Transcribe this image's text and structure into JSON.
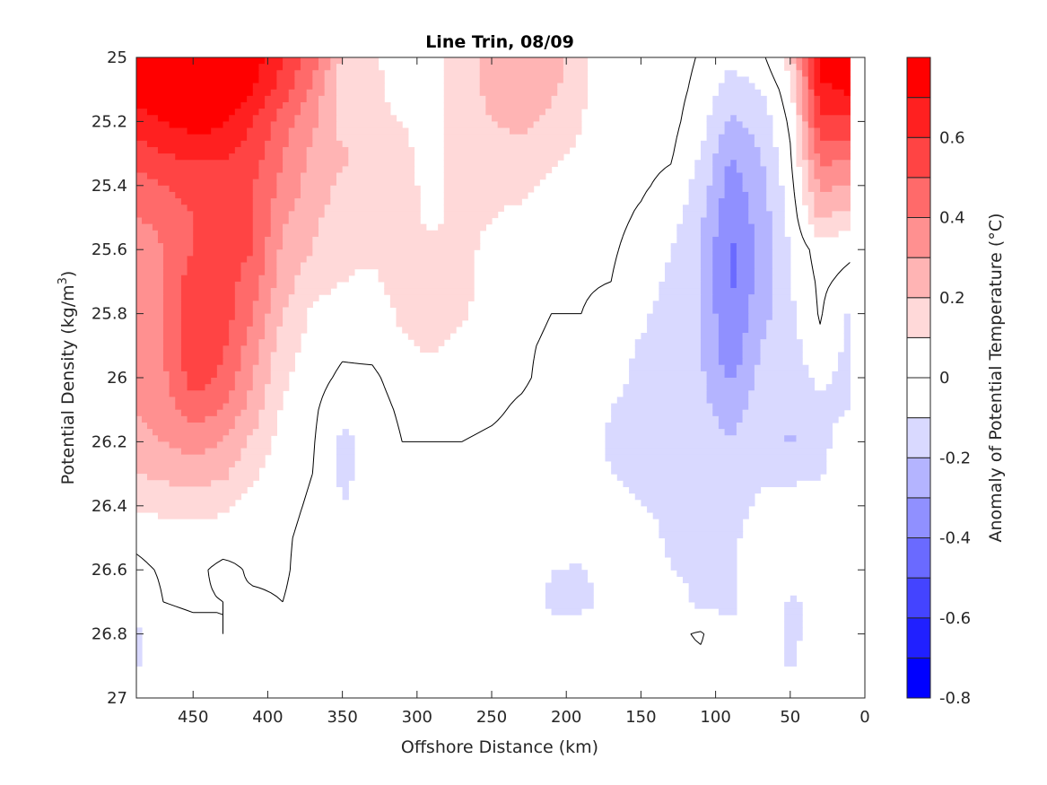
{
  "chart_data": {
    "type": "heatmap",
    "subtype": "filled-contour",
    "title": "Line Trin, 08/09",
    "xlabel": "Offshore Distance (km)",
    "ylabel": "Potential Density (kg/m",
    "ylabel_superscript": "3",
    "ylabel_suffix": ")",
    "colorbar_label": "Anomaly of Potential Temperature (°C)",
    "xlim": [
      488,
      0
    ],
    "ylim": [
      25,
      27
    ],
    "x_reversed": true,
    "y_reversed": true,
    "xticks": [
      450,
      400,
      350,
      300,
      250,
      200,
      150,
      100,
      50,
      0
    ],
    "xtick_labels": [
      "450",
      "400",
      "350",
      "300",
      "250",
      "200",
      "150",
      "100",
      "50",
      "0"
    ],
    "yticks": [
      25,
      25.2,
      25.4,
      25.6,
      25.8,
      26,
      26.2,
      26.4,
      26.6,
      26.8,
      27
    ],
    "ytick_labels": [
      "25",
      "25.2",
      "25.4",
      "25.6",
      "25.8",
      "26",
      "26.2",
      "26.4",
      "26.6",
      "26.8",
      "27"
    ],
    "colorbar": {
      "range": [
        -0.8,
        0.8
      ],
      "levels": [
        -0.8,
        -0.7,
        -0.6,
        -0.5,
        -0.4,
        -0.3,
        -0.2,
        -0.1,
        0,
        0.1,
        0.2,
        0.3,
        0.4,
        0.5,
        0.6,
        0.7,
        0.8
      ],
      "colors": [
        "#0000ff",
        "#2020ff",
        "#4444ff",
        "#6a6aff",
        "#9090ff",
        "#b4b4ff",
        "#d9d9ff",
        "#ffffff",
        "#ffffff",
        "#ffd9d9",
        "#ffb4b4",
        "#ff9090",
        "#ff6a6a",
        "#ff4444",
        "#ff2020",
        "#ff0000"
      ],
      "ticks": [
        -0.8,
        -0.6,
        -0.4,
        -0.2,
        0,
        0.2,
        0.4,
        0.6
      ],
      "tick_labels": [
        "-0.8",
        "-0.6",
        "-0.4",
        "-0.2",
        "0",
        "0.2",
        "0.4",
        "0.6"
      ]
    },
    "contour_line_level": 0,
    "grid": false,
    "x": [
      488,
      470,
      450,
      430,
      410,
      390,
      370,
      350,
      330,
      310,
      290,
      270,
      250,
      230,
      210,
      190,
      170,
      150,
      130,
      110,
      90,
      70,
      50,
      30,
      10
    ],
    "y": [
      25.0,
      25.1,
      25.2,
      25.3,
      25.4,
      25.5,
      25.6,
      25.7,
      25.8,
      25.9,
      26.0,
      26.1,
      26.2,
      26.3,
      26.4,
      26.5,
      26.6,
      26.7,
      26.8,
      26.9
    ],
    "z_by_column": [
      [
        0.75,
        0.75,
        0.65,
        0.55,
        0.45,
        0.4,
        0.35,
        0.35,
        0.35,
        0.35,
        0.35,
        0.3,
        0.25,
        0.2,
        0.12,
        0.02,
        -0.02,
        -0.05,
        -0.12,
        -0.12
      ],
      [
        0.8,
        0.8,
        0.7,
        0.6,
        0.5,
        0.42,
        0.4,
        0.4,
        0.4,
        0.4,
        0.38,
        0.35,
        0.3,
        0.22,
        0.13,
        0.04,
        0.01,
        0.0,
        -0.03,
        -0.05
      ],
      [
        0.8,
        0.8,
        0.75,
        0.62,
        0.55,
        0.5,
        0.5,
        0.55,
        0.55,
        0.55,
        0.55,
        0.45,
        0.35,
        0.25,
        0.15,
        0.05,
        0.02,
        0.01,
        -0.02,
        -0.03
      ],
      [
        0.8,
        0.8,
        0.72,
        0.62,
        0.52,
        0.5,
        0.55,
        0.55,
        0.55,
        0.52,
        0.48,
        0.4,
        0.3,
        0.22,
        0.12,
        0.04,
        -0.02,
        0.0,
        0.0,
        -0.02
      ],
      [
        0.75,
        0.7,
        0.6,
        0.55,
        0.5,
        0.5,
        0.5,
        0.45,
        0.4,
        0.35,
        0.3,
        0.25,
        0.18,
        0.12,
        0.06,
        0.02,
        0.01,
        -0.01,
        -0.02,
        -0.03
      ],
      [
        0.6,
        0.55,
        0.45,
        0.4,
        0.38,
        0.32,
        0.28,
        0.25,
        0.2,
        0.15,
        0.12,
        0.08,
        0.05,
        0.03,
        0.02,
        0.01,
        0.01,
        0.0,
        -0.02,
        -0.03
      ],
      [
        0.45,
        0.38,
        0.32,
        0.28,
        0.25,
        0.22,
        0.2,
        0.14,
        0.08,
        0.06,
        0.04,
        0.02,
        0.01,
        0.0,
        -0.01,
        -0.02,
        -0.03,
        -0.03,
        -0.04,
        -0.04
      ],
      [
        0.18,
        0.15,
        0.15,
        0.22,
        0.18,
        0.15,
        0.12,
        0.1,
        0.05,
        0.02,
        -0.02,
        -0.08,
        -0.12,
        -0.12,
        -0.1,
        -0.08,
        -0.05,
        -0.04,
        -0.04,
        -0.04
      ],
      [
        0.12,
        0.12,
        0.12,
        0.14,
        0.15,
        0.14,
        0.12,
        0.08,
        0.04,
        0.03,
        -0.02,
        -0.05,
        -0.08,
        -0.06,
        -0.05,
        -0.04,
        -0.03,
        -0.03,
        -0.03,
        -0.03
      ],
      [
        0.05,
        0.06,
        0.1,
        0.12,
        0.12,
        0.13,
        0.14,
        0.14,
        0.12,
        0.08,
        0.05,
        0.02,
        0.0,
        -0.01,
        -0.02,
        -0.02,
        -0.02,
        -0.02,
        -0.01,
        -0.02
      ],
      [
        0.06,
        0.05,
        0.05,
        0.06,
        0.08,
        0.08,
        0.12,
        0.15,
        0.15,
        0.12,
        0.06,
        0.03,
        0.0,
        -0.01,
        -0.02,
        -0.02,
        -0.02,
        -0.02,
        -0.01,
        -0.03
      ],
      [
        0.15,
        0.16,
        0.18,
        0.16,
        0.14,
        0.12,
        0.12,
        0.13,
        0.12,
        0.06,
        0.04,
        0.02,
        0.0,
        -0.01,
        -0.02,
        -0.02,
        -0.02,
        -0.02,
        -0.01,
        -0.03
      ],
      [
        0.25,
        0.22,
        0.2,
        0.15,
        0.12,
        0.1,
        0.08,
        0.05,
        0.04,
        0.03,
        0.02,
        0.01,
        -0.01,
        -0.02,
        -0.02,
        -0.02,
        -0.02,
        -0.02,
        -0.02,
        -0.03
      ],
      [
        0.3,
        0.25,
        0.22,
        0.18,
        0.12,
        0.08,
        0.05,
        0.03,
        0.02,
        0.01,
        0.01,
        -0.01,
        -0.02,
        -0.02,
        -0.02,
        -0.02,
        -0.02,
        -0.02,
        -0.02,
        -0.03
      ],
      [
        0.28,
        0.22,
        0.18,
        0.12,
        0.08,
        0.04,
        0.02,
        0.01,
        0.0,
        -0.01,
        -0.02,
        -0.03,
        -0.03,
        -0.03,
        -0.04,
        -0.05,
        -0.1,
        -0.12,
        -0.08,
        -0.03
      ],
      [
        0.12,
        0.12,
        0.1,
        0.08,
        0.05,
        0.03,
        0.02,
        0.01,
        0.0,
        -0.01,
        -0.02,
        -0.03,
        -0.03,
        -0.03,
        -0.04,
        -0.05,
        -0.11,
        -0.12,
        -0.06,
        -0.03
      ],
      [
        0.05,
        0.04,
        0.03,
        0.02,
        0.02,
        0.02,
        0.01,
        0.0,
        -0.03,
        -0.05,
        -0.06,
        -0.1,
        -0.12,
        -0.1,
        -0.06,
        -0.04,
        -0.06,
        -0.08,
        -0.04,
        -0.03
      ],
      [
        0.02,
        0.02,
        0.02,
        0.02,
        0.01,
        -0.01,
        -0.03,
        -0.05,
        -0.08,
        -0.11,
        -0.13,
        -0.14,
        -0.14,
        -0.12,
        -0.1,
        -0.06,
        -0.04,
        -0.03,
        -0.02,
        -0.02
      ],
      [
        0.05,
        0.04,
        0.03,
        0.01,
        -0.02,
        -0.06,
        -0.1,
        -0.12,
        -0.14,
        -0.15,
        -0.16,
        -0.16,
        -0.16,
        -0.14,
        -0.12,
        -0.12,
        -0.1,
        -0.06,
        -0.02,
        -0.02
      ],
      [
        -0.01,
        -0.03,
        -0.06,
        -0.1,
        -0.14,
        -0.18,
        -0.2,
        -0.2,
        -0.2,
        -0.2,
        -0.18,
        -0.17,
        -0.15,
        -0.13,
        -0.12,
        -0.11,
        -0.12,
        -0.12,
        0.01,
        -0.02
      ],
      [
        -0.08,
        -0.14,
        -0.22,
        -0.3,
        -0.35,
        -0.38,
        -0.42,
        -0.42,
        -0.4,
        -0.38,
        -0.32,
        -0.25,
        -0.2,
        -0.16,
        -0.14,
        -0.12,
        -0.12,
        -0.13,
        -0.08,
        -0.03
      ],
      [
        -0.03,
        -0.1,
        -0.16,
        -0.2,
        -0.24,
        -0.26,
        -0.28,
        -0.26,
        -0.24,
        -0.2,
        -0.17,
        -0.15,
        -0.13,
        -0.11,
        -0.08,
        -0.05,
        -0.03,
        -0.02,
        -0.01,
        -0.01
      ],
      [
        0.15,
        0.06,
        0.02,
        -0.01,
        -0.04,
        -0.07,
        -0.09,
        -0.1,
        -0.12,
        -0.14,
        -0.16,
        -0.2,
        -0.21,
        -0.12,
        -0.06,
        -0.04,
        -0.08,
        -0.11,
        -0.12,
        -0.11
      ],
      [
        0.75,
        0.68,
        0.58,
        0.45,
        0.32,
        0.22,
        0.05,
        0.02,
        0.01,
        -0.02,
        -0.08,
        -0.12,
        -0.12,
        -0.11,
        -0.06,
        -0.03,
        -0.05,
        -0.08,
        -0.06,
        -0.02
      ],
      [
        0.8,
        0.72,
        0.58,
        0.42,
        0.3,
        0.15,
        0.02,
        -0.03,
        -0.12,
        -0.13,
        -0.14,
        -0.1,
        -0.06,
        -0.03,
        -0.02,
        -0.02,
        -0.02,
        -0.02,
        -0.02,
        -0.02
      ]
    ]
  }
}
